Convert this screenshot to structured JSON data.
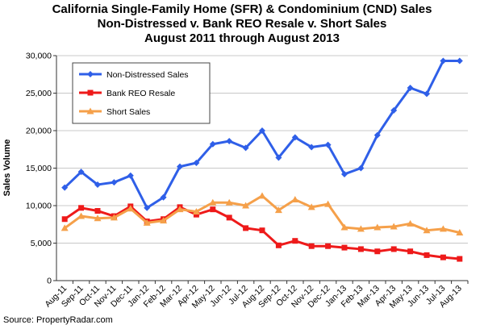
{
  "chart_data": {
    "type": "line",
    "title": [
      "California Single-Family Home (SFR) & Condominium (CND) Sales",
      "Non-Distressed v. Bank REO Resale v. Short Sales",
      "August 2011 through August 2013"
    ],
    "ylabel": "Sales Volume",
    "xlabel": "",
    "ylim": [
      0,
      30000
    ],
    "yticks": [
      "0",
      "5,000",
      "10,000",
      "15,000",
      "20,000",
      "25,000",
      "30,000"
    ],
    "ytick_values": [
      0,
      5000,
      10000,
      15000,
      20000,
      25000,
      30000
    ],
    "grid": true,
    "legend_position": "top-left",
    "categories": [
      "Aug-11",
      "Sep-11",
      "Oct-11",
      "Nov-11",
      "Dec-11",
      "Jan-12",
      "Feb-12",
      "Mar-12",
      "Apr-12",
      "May-12",
      "Jun-12",
      "Jul-12",
      "Aug-12",
      "Sep-12",
      "Oct-12",
      "Nov-12",
      "Dec-12",
      "Jan-13",
      "Feb-13",
      "Mar-13",
      "Apr-13",
      "May-13",
      "Jun-13",
      "Jul-13",
      "Aug-13"
    ],
    "series": [
      {
        "name": "Non-Distressed Sales",
        "color": "#2f5fe8",
        "marker": "diamond",
        "values": [
          12400,
          14500,
          12800,
          13100,
          14000,
          9700,
          11100,
          15200,
          15700,
          18200,
          18600,
          17700,
          20000,
          16400,
          19100,
          17800,
          18100,
          14200,
          15000,
          19400,
          22700,
          25700,
          24900,
          29300,
          29300
        ]
      },
      {
        "name": "Bank REO Resale",
        "color": "#ee1a1a",
        "marker": "square",
        "values": [
          8200,
          9700,
          9300,
          8600,
          9900,
          7900,
          8200,
          9800,
          8800,
          9500,
          8400,
          7000,
          6700,
          4700,
          5300,
          4600,
          4600,
          4400,
          4200,
          3900,
          4200,
          3900,
          3400,
          3100,
          2900
        ]
      },
      {
        "name": "Short Sales",
        "color": "#f5a04a",
        "marker": "triangle",
        "values": [
          7000,
          8600,
          8300,
          8400,
          9600,
          7700,
          8000,
          9500,
          9200,
          10400,
          10400,
          10000,
          11300,
          9400,
          10800,
          9800,
          10200,
          7100,
          6900,
          7100,
          7200,
          7600,
          6700,
          6900,
          6400
        ]
      }
    ],
    "source": "Source: PropertyRadar.com"
  }
}
